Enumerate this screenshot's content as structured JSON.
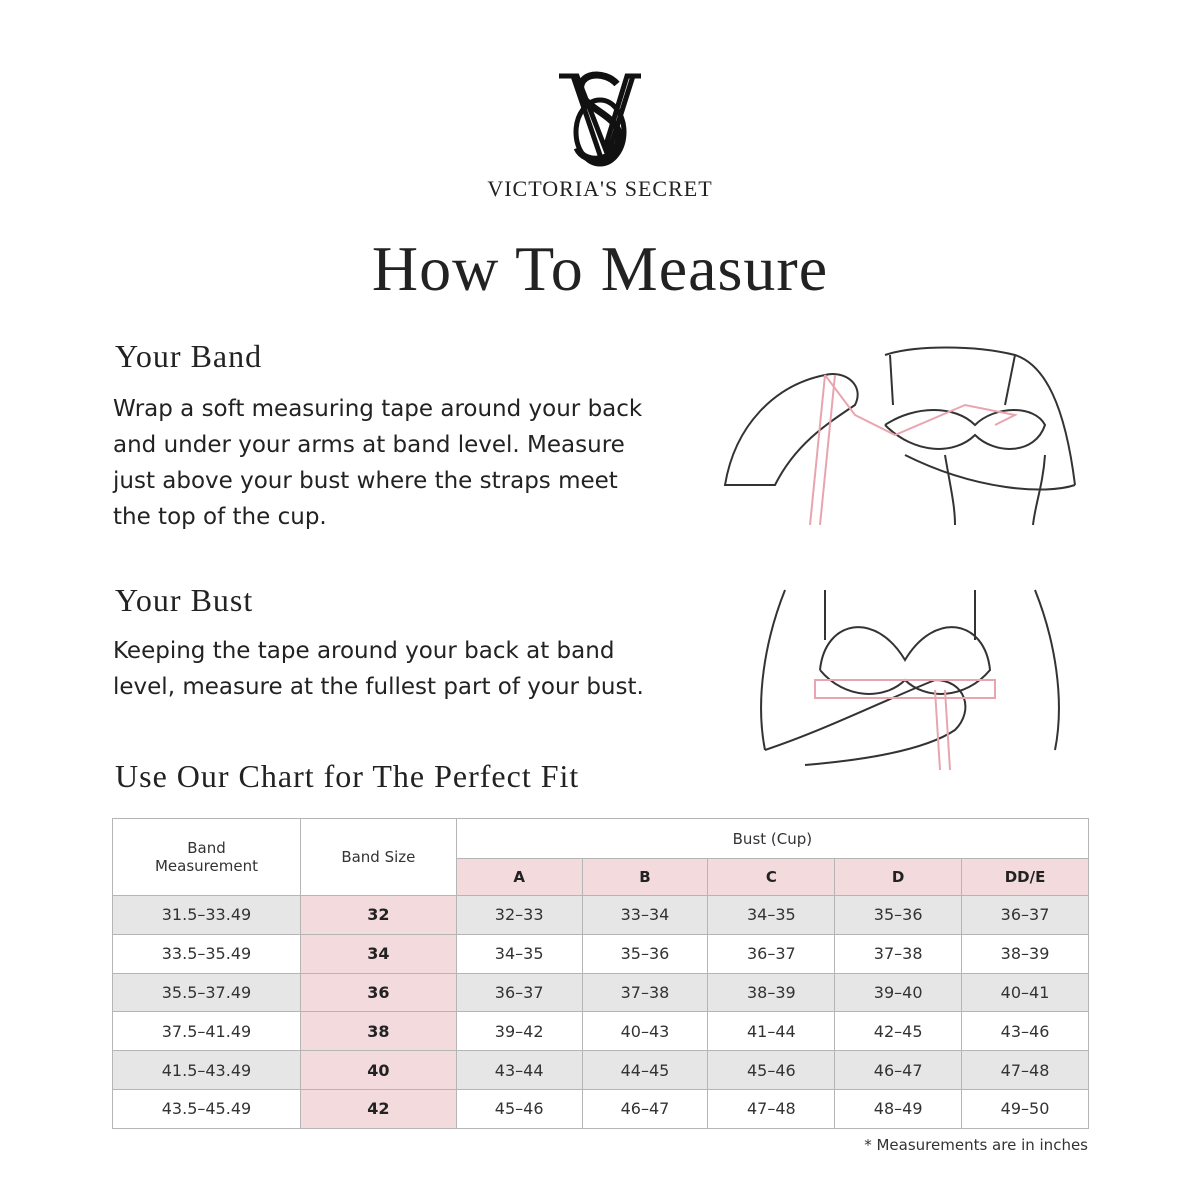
{
  "brand": {
    "name": "VICTORIA'S SECRET",
    "monogram": "VS"
  },
  "title": "How To Measure",
  "band": {
    "heading": "Your Band",
    "text": [
      "Wrap a soft measuring tape around your back",
      "and under your arms at band level.  Measure",
      "just above your bust where the straps meet",
      "the top of the cup."
    ]
  },
  "bust": {
    "heading": "Your Bust",
    "text": [
      "Keeping the tape around your back at band",
      "level, measure at the fullest part of your bust."
    ]
  },
  "chart_heading": "Use Our Chart for The Perfect Fit",
  "colors": {
    "pink": "#f2dadd",
    "gray": "#e6e6e6",
    "tape": "#e8a5b0"
  },
  "table": {
    "headers": {
      "band_measurement": "Band Measurement",
      "band_size": "Band Size",
      "bust": "Bust (Cup)",
      "cups": [
        "A",
        "B",
        "C",
        "D",
        "DD/E"
      ]
    },
    "rows": [
      {
        "measurement": "31.5–33.49",
        "size": "32",
        "cups": [
          "32–33",
          "33–34",
          "34–35",
          "35–36",
          "36–37"
        ]
      },
      {
        "measurement": "33.5–35.49",
        "size": "34",
        "cups": [
          "34–35",
          "35–36",
          "36–37",
          "37–38",
          "38–39"
        ]
      },
      {
        "measurement": "35.5–37.49",
        "size": "36",
        "cups": [
          "36–37",
          "37–38",
          "38–39",
          "39–40",
          "40–41"
        ]
      },
      {
        "measurement": "37.5–41.49",
        "size": "38",
        "cups": [
          "39–42",
          "40–43",
          "41–44",
          "42–45",
          "43–46"
        ]
      },
      {
        "measurement": "41.5–43.49",
        "size": "40",
        "cups": [
          "43–44",
          "44–45",
          "45–46",
          "46–47",
          "47–48"
        ]
      },
      {
        "measurement": "43.5–45.49",
        "size": "42",
        "cups": [
          "45–46",
          "46–47",
          "47–48",
          "48–49",
          "49–50"
        ]
      }
    ]
  },
  "note": "* Measurements are in inches"
}
